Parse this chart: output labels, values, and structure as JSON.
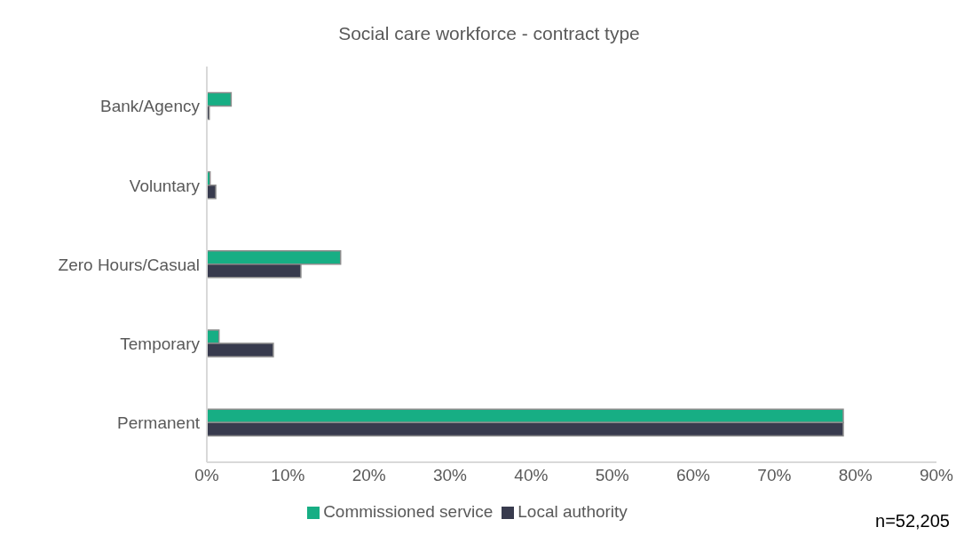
{
  "chart_data": {
    "type": "bar",
    "orientation": "horizontal",
    "title": "Social care workforce - contract type",
    "categories": [
      "Bank/Agency",
      "Voluntary",
      "Zero Hours/Casual",
      "Temporary",
      "Permanent"
    ],
    "series": [
      {
        "name": "Commissioned service",
        "color": "#17ae84",
        "values": [
          3.0,
          0.4,
          16.5,
          1.5,
          78.5
        ]
      },
      {
        "name": "Local authority",
        "color": "#383b4e",
        "values": [
          0.3,
          1.1,
          11.6,
          8.2,
          78.5
        ]
      }
    ],
    "xlim": [
      0,
      90
    ],
    "xticks": [
      {
        "value": 0,
        "label": "0%"
      },
      {
        "value": 10,
        "label": "10%"
      },
      {
        "value": 20,
        "label": "20%"
      },
      {
        "value": 30,
        "label": "30%"
      },
      {
        "value": 40,
        "label": "40%"
      },
      {
        "value": 50,
        "label": "50%"
      },
      {
        "value": 60,
        "label": "60%"
      },
      {
        "value": 70,
        "label": "70%"
      },
      {
        "value": 80,
        "label": "80%"
      },
      {
        "value": 90,
        "label": "90%"
      }
    ],
    "grid": false,
    "legend": "bottom",
    "annotations": [
      "n=52,205"
    ]
  }
}
